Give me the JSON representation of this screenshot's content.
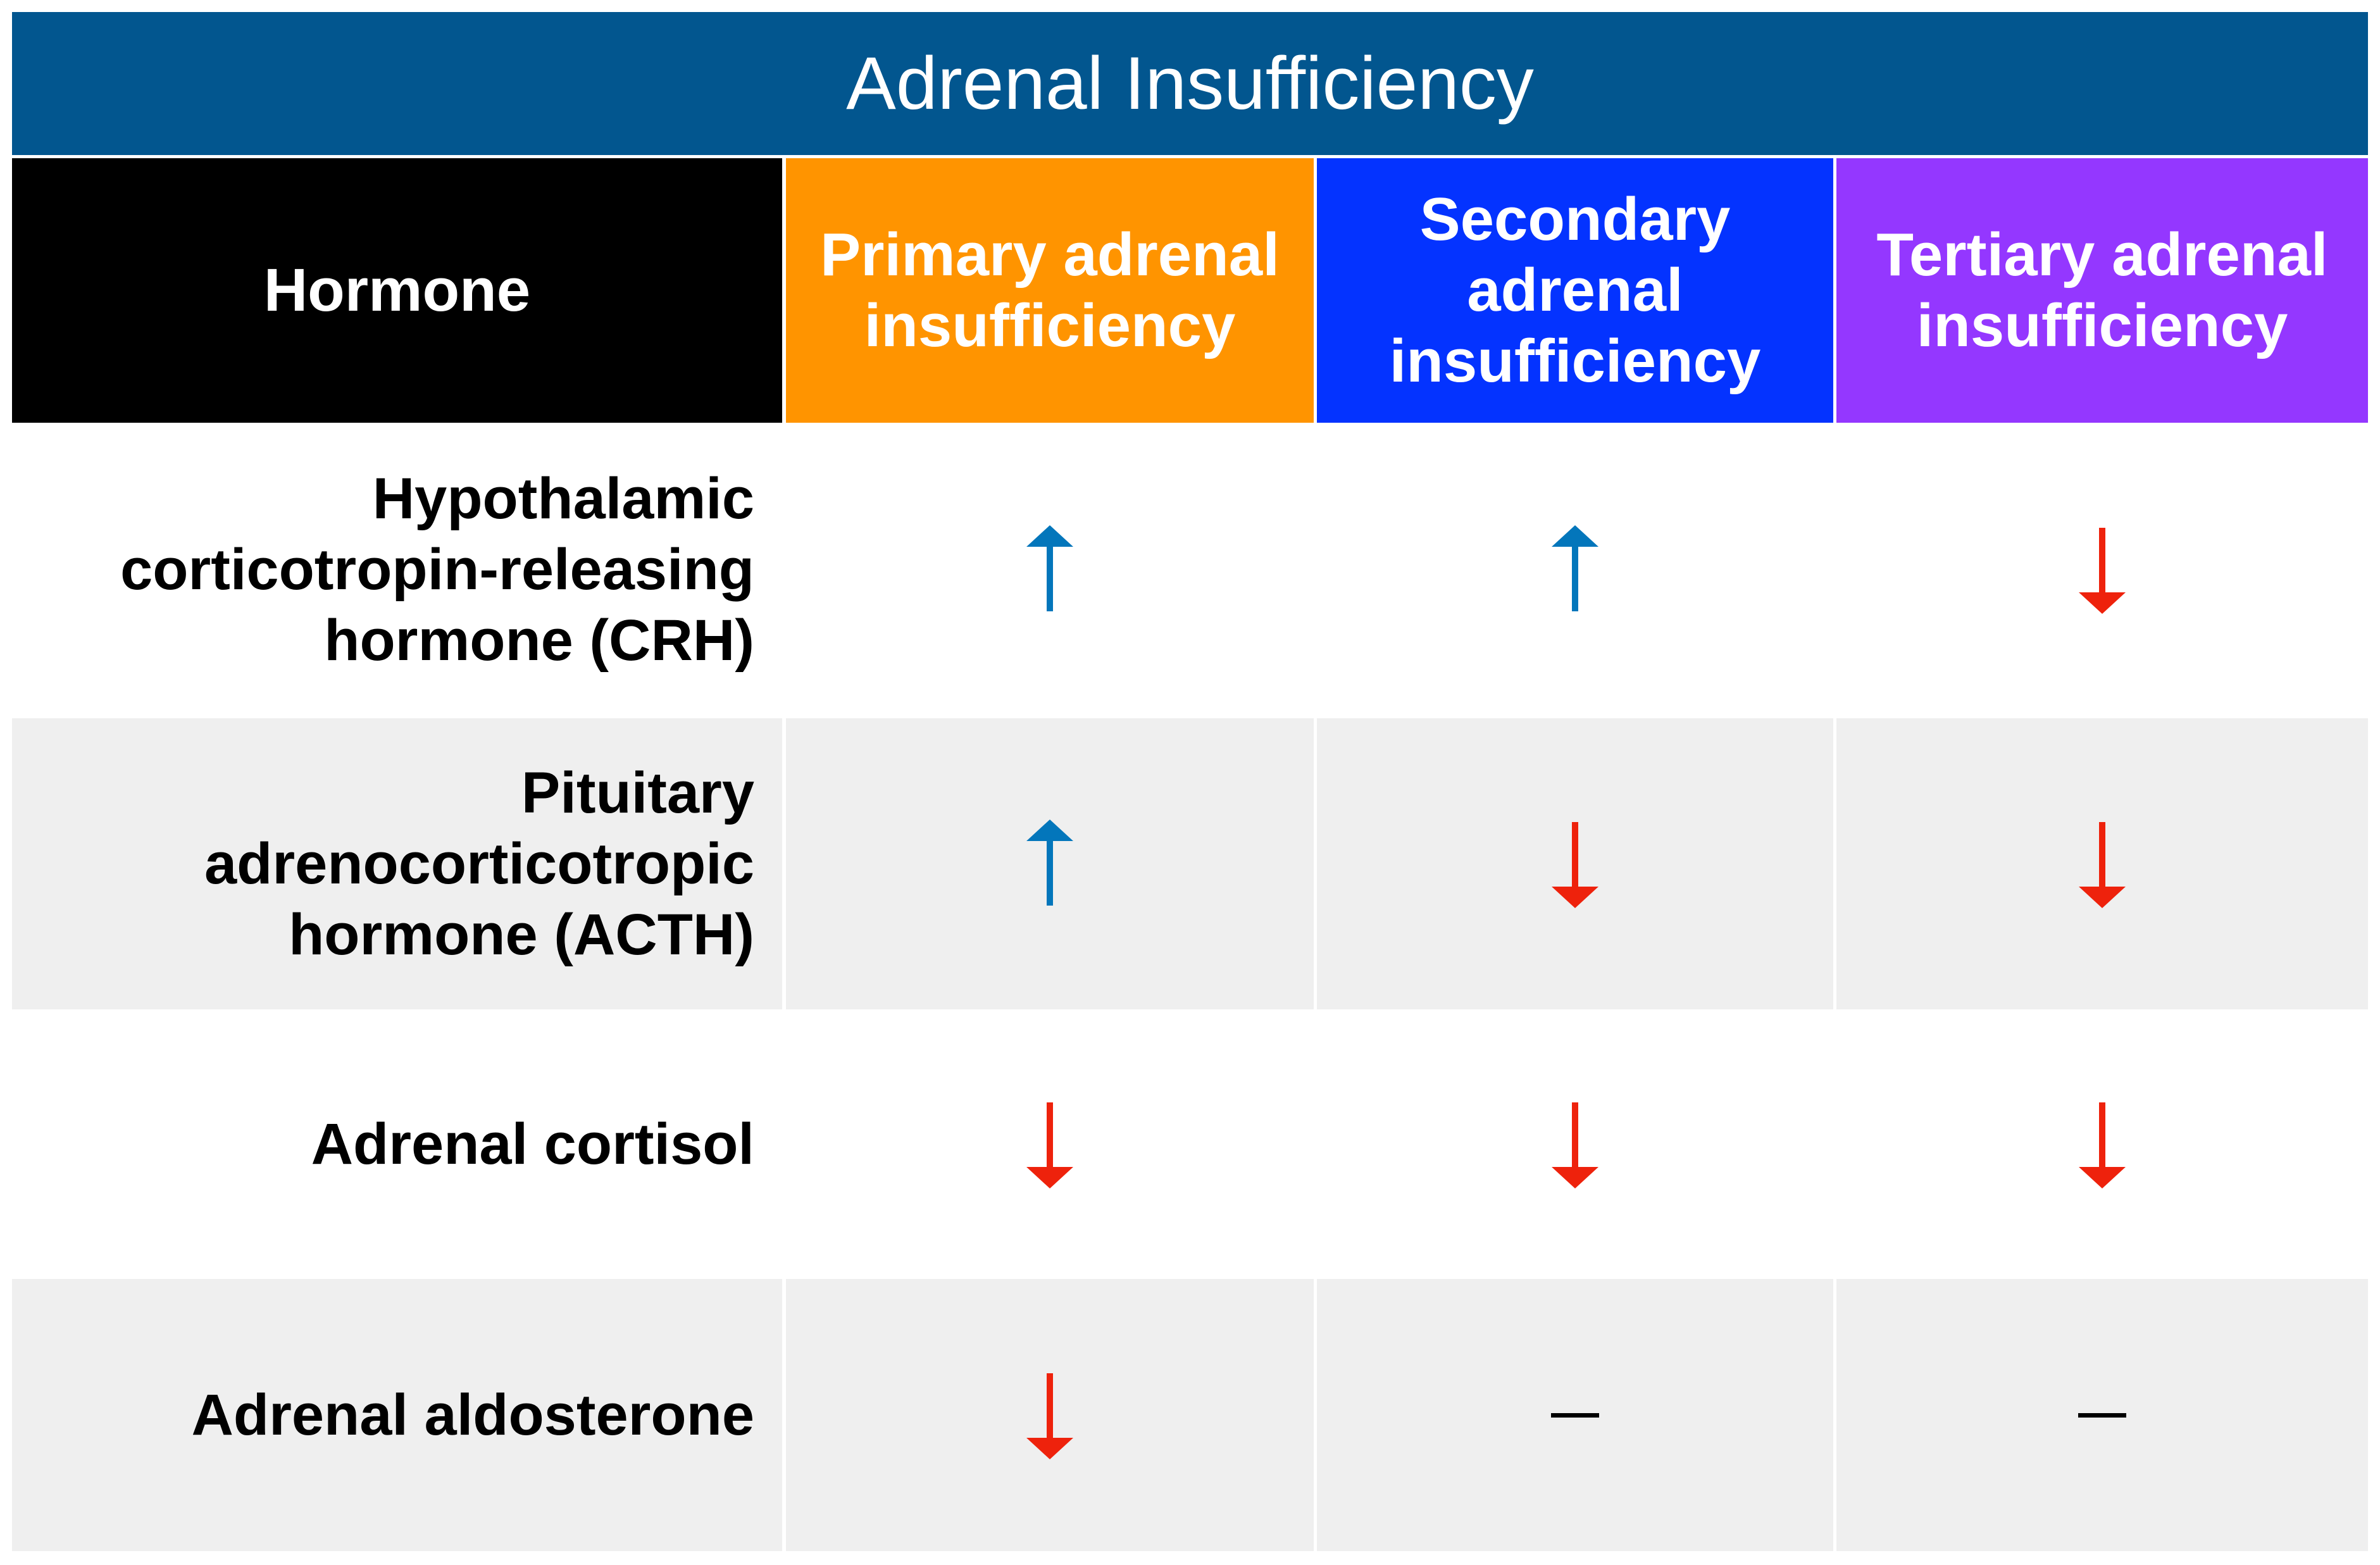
{
  "title": "Adrenal Insufficiency",
  "colors": {
    "title_bg": "#02568f",
    "hormone_header_bg": "#000000",
    "primary_bg": "#ff9400",
    "secondary_bg": "#0433ff",
    "tertiary_bg": "#9437ff",
    "increase_arrow": "#0376bb",
    "decrease_arrow": "#ee220c",
    "row_shade": "#efefef"
  },
  "columns": [
    {
      "key": "hormone",
      "label": "Hormone"
    },
    {
      "key": "primary",
      "label": "Primary adrenal insufficiency"
    },
    {
      "key": "secondary",
      "label": "Secondary adrenal insufficiency"
    },
    {
      "key": "tertiary",
      "label": "Tertiary adrenal insufficiency"
    }
  ],
  "rows": [
    {
      "hormone": "Hypothalamic corticotropin-releasing hormone (CRH)",
      "primary": "increase",
      "secondary": "increase",
      "tertiary": "decrease"
    },
    {
      "hormone": "Pituitary adrenocorticotropic hormone (ACTH)",
      "primary": "increase",
      "secondary": "decrease",
      "tertiary": "decrease"
    },
    {
      "hormone": "Adrenal cortisol",
      "primary": "decrease",
      "secondary": "decrease",
      "tertiary": "decrease"
    },
    {
      "hormone": "Adrenal aldosterone",
      "primary": "decrease",
      "secondary": "no-change",
      "tertiary": "no-change"
    }
  ],
  "icons": {
    "increase": "up-arrow-icon",
    "decrease": "down-arrow-icon",
    "no-change": "dash-icon"
  }
}
